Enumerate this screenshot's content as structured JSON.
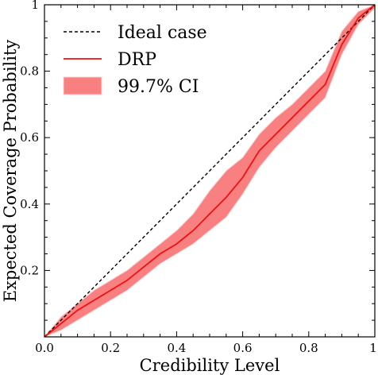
{
  "chart_data": {
    "type": "line",
    "xlabel": "Credibility Level",
    "ylabel": "Expected Coverage Probability",
    "xlim": [
      0,
      1
    ],
    "ylim": [
      0,
      1
    ],
    "xticks": [
      {
        "value": 0.0,
        "label": "0.0"
      },
      {
        "value": 0.2,
        "label": "0.2"
      },
      {
        "value": 0.4,
        "label": "0.4"
      },
      {
        "value": 0.6,
        "label": "0.6"
      },
      {
        "value": 0.8,
        "label": "0.8"
      },
      {
        "value": 1.0,
        "label": "1"
      }
    ],
    "yticks": [
      {
        "value": 0.2,
        "label": "0.2"
      },
      {
        "value": 0.4,
        "label": "0.4"
      },
      {
        "value": 0.6,
        "label": "0.6"
      },
      {
        "value": 0.8,
        "label": "0.8"
      },
      {
        "value": 1.0,
        "label": "1"
      }
    ],
    "xticklabel_extra": {
      "value": 0.0,
      "label": "0.0"
    },
    "legend_position": "top-left",
    "series": [
      {
        "name": "Ideal case",
        "style": "dashed",
        "color": "#000000",
        "x": [
          0,
          1
        ],
        "y": [
          0,
          1
        ]
      },
      {
        "name": "DRP",
        "style": "solid",
        "color": "#ee1111",
        "x": [
          0,
          0.05,
          0.1,
          0.15,
          0.2,
          0.25,
          0.3,
          0.35,
          0.4,
          0.45,
          0.5,
          0.55,
          0.6,
          0.65,
          0.7,
          0.75,
          0.8,
          0.85,
          0.9,
          0.95,
          1.0
        ],
        "y": [
          0,
          0.04,
          0.08,
          0.11,
          0.14,
          0.17,
          0.21,
          0.25,
          0.28,
          0.32,
          0.37,
          0.42,
          0.48,
          0.56,
          0.61,
          0.66,
          0.71,
          0.76,
          0.88,
          0.96,
          1.0
        ]
      },
      {
        "name": "99.7% CI",
        "style": "band",
        "color": "#f88080",
        "x": [
          0,
          0.05,
          0.1,
          0.15,
          0.2,
          0.25,
          0.3,
          0.35,
          0.4,
          0.45,
          0.5,
          0.55,
          0.6,
          0.65,
          0.7,
          0.75,
          0.8,
          0.85,
          0.9,
          0.95,
          1.0
        ],
        "lower": [
          0,
          0.02,
          0.05,
          0.08,
          0.11,
          0.14,
          0.18,
          0.22,
          0.25,
          0.28,
          0.32,
          0.36,
          0.43,
          0.51,
          0.57,
          0.62,
          0.67,
          0.72,
          0.85,
          0.94,
          0.99
        ],
        "upper": [
          0,
          0.06,
          0.1,
          0.14,
          0.17,
          0.2,
          0.24,
          0.28,
          0.32,
          0.37,
          0.44,
          0.5,
          0.54,
          0.61,
          0.66,
          0.7,
          0.75,
          0.8,
          0.92,
          0.98,
          1.0
        ]
      }
    ]
  },
  "legend": {
    "ideal_label": "Ideal case",
    "drp_label": "DRP",
    "ci_label": "99.7% CI"
  }
}
